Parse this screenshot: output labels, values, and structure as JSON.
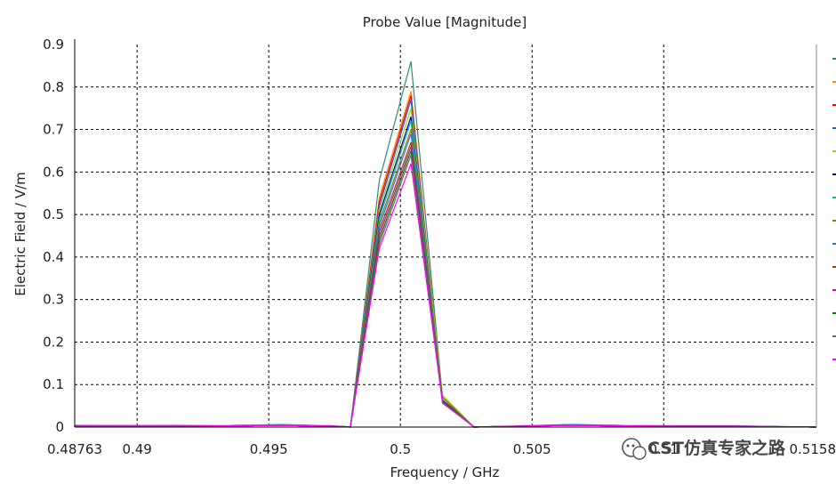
{
  "chart_data": {
    "type": "line",
    "title": "Probe Value [Magnitude]",
    "xlabel": "Frequency / GHz",
    "ylabel": "Electric Field / V/m",
    "xlim": [
      0.48763,
      0.5158
    ],
    "ylim": [
      0,
      0.9
    ],
    "grid": true,
    "legend": "right (cut off)",
    "x_ticks": [
      {
        "value": 0.48763,
        "label": "0.48763"
      },
      {
        "value": 0.49,
        "label": "0.49"
      },
      {
        "value": 0.495,
        "label": "0.495"
      },
      {
        "value": 0.5,
        "label": "0.5"
      },
      {
        "value": 0.505,
        "label": "0.505"
      },
      {
        "value": 0.51,
        "label": "0.51"
      },
      {
        "value": 0.5158,
        "label": "0.5158"
      }
    ],
    "y_ticks": [
      {
        "value": 0,
        "label": "0"
      },
      {
        "value": 0.1,
        "label": "0.1"
      },
      {
        "value": 0.2,
        "label": "0.2"
      },
      {
        "value": 0.3,
        "label": "0.3"
      },
      {
        "value": 0.4,
        "label": "0.4"
      },
      {
        "value": 0.5,
        "label": "0.5"
      },
      {
        "value": 0.6,
        "label": "0.6"
      },
      {
        "value": 0.7,
        "label": "0.7"
      },
      {
        "value": 0.8,
        "label": "0.8"
      },
      {
        "value": 0.9,
        "label": "0.9"
      }
    ],
    "x": [
      0.48763,
      0.4915,
      0.4935,
      0.4955,
      0.4975,
      0.4981,
      0.4992,
      0.5004,
      0.5016,
      0.5028,
      0.5045,
      0.5065,
      0.5085,
      0.5105,
      0.5125,
      0.5158
    ],
    "series": [
      {
        "color": "#2e8b7a",
        "values": [
          0.003,
          0.004,
          0.004,
          0.006,
          0.003,
          0.0,
          0.58,
          0.86,
          0.07,
          0.0,
          0.003,
          0.006,
          0.004,
          0.003,
          0.003,
          0.0
        ]
      },
      {
        "color": "#ff8c00",
        "values": [
          0.002,
          0.003,
          0.004,
          0.005,
          0.003,
          0.0,
          0.54,
          0.79,
          0.065,
          0.0,
          0.003,
          0.005,
          0.004,
          0.003,
          0.002,
          0.0
        ]
      },
      {
        "color": "#ff0000",
        "values": [
          0.002,
          0.003,
          0.003,
          0.004,
          0.002,
          0.0,
          0.53,
          0.78,
          0.064,
          0.0,
          0.002,
          0.004,
          0.003,
          0.002,
          0.002,
          0.0
        ]
      },
      {
        "color": "#1f5fd0",
        "values": [
          0.004,
          0.003,
          0.003,
          0.004,
          0.002,
          0.0,
          0.52,
          0.77,
          0.063,
          0.0,
          0.002,
          0.005,
          0.003,
          0.003,
          0.002,
          0.0
        ]
      },
      {
        "color": "#9acd32",
        "values": [
          0.002,
          0.003,
          0.004,
          0.005,
          0.003,
          0.0,
          0.51,
          0.75,
          0.075,
          0.0,
          0.003,
          0.004,
          0.004,
          0.002,
          0.002,
          0.0
        ]
      },
      {
        "color": "#000080",
        "values": [
          0.002,
          0.002,
          0.003,
          0.004,
          0.002,
          0.0,
          0.5,
          0.73,
          0.062,
          0.0,
          0.002,
          0.004,
          0.003,
          0.002,
          0.002,
          0.0
        ]
      },
      {
        "color": "#20b2aa",
        "values": [
          0.002,
          0.003,
          0.003,
          0.004,
          0.002,
          0.0,
          0.49,
          0.72,
          0.061,
          0.0,
          0.002,
          0.004,
          0.003,
          0.002,
          0.002,
          0.0
        ]
      },
      {
        "color": "#808000",
        "values": [
          0.002,
          0.003,
          0.003,
          0.004,
          0.002,
          0.0,
          0.48,
          0.7,
          0.07,
          0.0,
          0.002,
          0.004,
          0.003,
          0.002,
          0.002,
          0.0
        ]
      },
      {
        "color": "#4169e1",
        "values": [
          0.003,
          0.002,
          0.003,
          0.005,
          0.002,
          0.0,
          0.47,
          0.69,
          0.06,
          0.0,
          0.002,
          0.006,
          0.003,
          0.002,
          0.003,
          0.0
        ]
      },
      {
        "color": "#8b4513",
        "values": [
          0.002,
          0.002,
          0.003,
          0.004,
          0.002,
          0.0,
          0.46,
          0.67,
          0.058,
          0.0,
          0.002,
          0.004,
          0.003,
          0.002,
          0.002,
          0.0
        ]
      },
      {
        "color": "#c71585",
        "values": [
          0.002,
          0.002,
          0.003,
          0.004,
          0.002,
          0.0,
          0.45,
          0.66,
          0.058,
          0.0,
          0.002,
          0.004,
          0.003,
          0.002,
          0.002,
          0.0
        ]
      },
      {
        "color": "#008000",
        "values": [
          0.002,
          0.002,
          0.003,
          0.004,
          0.002,
          0.0,
          0.44,
          0.65,
          0.06,
          0.0,
          0.002,
          0.004,
          0.003,
          0.002,
          0.002,
          0.0
        ]
      },
      {
        "color": "#696969",
        "values": [
          0.002,
          0.002,
          0.003,
          0.004,
          0.002,
          0.0,
          0.43,
          0.64,
          0.057,
          0.0,
          0.002,
          0.004,
          0.003,
          0.002,
          0.002,
          0.0
        ]
      },
      {
        "color": "#ff00ff",
        "values": [
          0.002,
          0.002,
          0.003,
          0.004,
          0.002,
          0.0,
          0.42,
          0.62,
          0.056,
          0.0,
          0.002,
          0.004,
          0.003,
          0.002,
          0.002,
          0.0
        ]
      }
    ]
  },
  "watermark": {
    "text": "CST仿真专家之路"
  }
}
